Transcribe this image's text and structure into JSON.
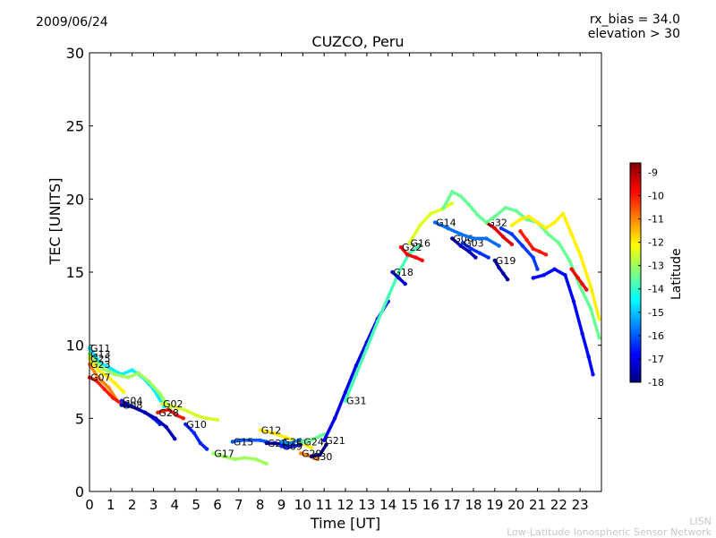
{
  "header": {
    "date": "2009/06/24",
    "title": "CUZCO, Peru",
    "rx_bias": "rx_bias = 34.0",
    "elevation": "elevation > 30"
  },
  "footer": {
    "brand": "LISN",
    "network": "Low-Latitude Ionospheric Sensor Network"
  },
  "chart_data": {
    "type": "scatter",
    "title": "CUZCO, Peru",
    "xlabel": "Time [UT]",
    "ylabel": "TEC [UNITS]",
    "xlim": [
      0,
      24
    ],
    "ylim": [
      0,
      30
    ],
    "xticks": [
      "0",
      "1",
      "2",
      "3",
      "4",
      "5",
      "6",
      "7",
      "8",
      "9",
      "10",
      "11",
      "12",
      "13",
      "14",
      "15",
      "16",
      "17",
      "18",
      "19",
      "20",
      "21",
      "22",
      "23"
    ],
    "yticks": [
      "0",
      "5",
      "10",
      "15",
      "20",
      "25",
      "30"
    ],
    "grid": false,
    "colorbar": {
      "label": "Latitude",
      "min": -18,
      "max": -8.6,
      "ticks": [
        "-9",
        "-10",
        "-11",
        "-12",
        "-13",
        "-14",
        "-15",
        "-16",
        "-17",
        "-18"
      ],
      "colors": [
        "#00007f",
        "#0000ff",
        "#007fff",
        "#00ffff",
        "#7fff7f",
        "#ffff00",
        "#ff7f00",
        "#ff0000",
        "#7f0000"
      ]
    },
    "series": [
      {
        "name": "G11",
        "lat": -14.6,
        "x": [
          0.0,
          0.5,
          1.0,
          1.5,
          2.0,
          2.5,
          3.0,
          3.5
        ],
        "y": [
          9.8,
          8.8,
          8.4,
          8.0,
          8.3,
          7.8,
          7.0,
          5.8
        ]
      },
      {
        "name": "G13",
        "lat": -13.0,
        "x": [
          0.0,
          0.6,
          1.2,
          1.8,
          2.3,
          2.8,
          3.3,
          3.8
        ],
        "y": [
          9.4,
          8.4,
          8.0,
          7.8,
          8.1,
          7.5,
          6.7,
          5.6
        ]
      },
      {
        "name": "G25",
        "lat": -12.0,
        "x": [
          0.0,
          0.4,
          0.8,
          1.2,
          1.6
        ],
        "y": [
          9.1,
          8.3,
          7.9,
          7.4,
          6.8
        ]
      },
      {
        "name": "G23",
        "lat": -11.0,
        "x": [
          0.0,
          0.4,
          0.9,
          1.3
        ],
        "y": [
          8.7,
          7.8,
          7.1,
          6.2
        ]
      },
      {
        "name": "G07",
        "lat": -10.0,
        "x": [
          0.0,
          0.3,
          0.7,
          1.1,
          1.5
        ],
        "y": [
          7.8,
          7.6,
          7.0,
          6.4,
          6.0
        ]
      },
      {
        "name": "G04",
        "lat": -16.5,
        "x": [
          1.5,
          2.0,
          2.6,
          3.0,
          3.3
        ],
        "y": [
          6.2,
          5.8,
          5.4,
          5.0,
          4.6
        ]
      },
      {
        "name": "G08",
        "lat": -17.5,
        "x": [
          1.5,
          2.0,
          2.6,
          3.1,
          3.6,
          4.0
        ],
        "y": [
          5.9,
          5.8,
          5.4,
          5.0,
          4.4,
          3.6
        ]
      },
      {
        "name": "G02",
        "lat": -12.5,
        "x": [
          3.4,
          4.0,
          4.6,
          5.0,
          5.5,
          6.0
        ],
        "y": [
          6.0,
          5.8,
          5.5,
          5.2,
          5.0,
          4.9
        ]
      },
      {
        "name": "G28",
        "lat": -10.0,
        "x": [
          3.2,
          3.7,
          4.1,
          4.4
        ],
        "y": [
          5.4,
          5.6,
          5.2,
          5.0
        ]
      },
      {
        "name": "G10",
        "lat": -16.5,
        "x": [
          4.5,
          4.9,
          5.2,
          5.5
        ],
        "y": [
          4.6,
          4.0,
          3.3,
          2.9
        ]
      },
      {
        "name": "G15",
        "lat": -16.0,
        "x": [
          6.7,
          7.1,
          7.6,
          8.0,
          8.3
        ],
        "y": [
          3.4,
          3.5,
          3.5,
          3.5,
          3.4
        ]
      },
      {
        "name": "G17",
        "lat": -13.0,
        "x": [
          5.8,
          6.3,
          6.8,
          7.3,
          7.8,
          8.3
        ],
        "y": [
          2.6,
          2.4,
          2.2,
          2.3,
          2.2,
          1.9
        ]
      },
      {
        "name": "G12",
        "lat": -12.0,
        "x": [
          8.0,
          8.6,
          9.2,
          9.8,
          10.4
        ],
        "y": [
          4.2,
          4.0,
          3.7,
          3.4,
          3.0
        ]
      },
      {
        "name": "G27",
        "lat": -17.5,
        "x": [
          8.3,
          8.7,
          9.1,
          9.5
        ],
        "y": [
          3.3,
          3.3,
          3.2,
          3.2
        ]
      },
      {
        "name": "G09",
        "lat": -16.5,
        "x": [
          9.0,
          9.3,
          9.6,
          9.9
        ],
        "y": [
          3.1,
          3.0,
          3.1,
          3.2
        ]
      },
      {
        "name": "G26",
        "lat": -15.5,
        "x": [
          9.0,
          9.4,
          9.8,
          10.2
        ],
        "y": [
          3.4,
          3.3,
          3.5,
          3.4
        ]
      },
      {
        "name": "G29",
        "lat": -11.0,
        "x": [
          9.9,
          10.2,
          10.5,
          10.7
        ],
        "y": [
          2.6,
          2.5,
          2.3,
          2.2
        ]
      },
      {
        "name": "G24",
        "lat": -13.5,
        "x": [
          10.0,
          10.4,
          10.8,
          11.0
        ],
        "y": [
          3.4,
          3.5,
          3.8,
          3.9
        ]
      },
      {
        "name": "G30",
        "lat": -18.0,
        "x": [
          10.4,
          10.8,
          11.1
        ],
        "y": [
          2.4,
          2.5,
          3.2
        ]
      },
      {
        "name": "G21",
        "lat": -17.0,
        "x": [
          11.0,
          11.5,
          12.0,
          12.5,
          13.0,
          13.5,
          14.0
        ],
        "y": [
          3.5,
          5.0,
          6.8,
          8.6,
          10.2,
          11.8,
          13.0
        ]
      },
      {
        "name": "G31",
        "lat": -13.8,
        "x": [
          12.0,
          12.5,
          13.0,
          13.5,
          14.0,
          14.5,
          15.0,
          15.5
        ],
        "y": [
          6.2,
          8.0,
          9.8,
          11.6,
          13.3,
          15.0,
          16.3,
          16.8
        ]
      },
      {
        "name": "G18",
        "lat": -17.2,
        "x": [
          14.2,
          14.5,
          14.8
        ],
        "y": [
          15.0,
          14.6,
          14.2
        ]
      },
      {
        "name": "G22",
        "lat": -9.8,
        "x": [
          14.6,
          14.9,
          15.3,
          15.6
        ],
        "y": [
          16.7,
          16.2,
          16.0,
          15.8
        ]
      },
      {
        "name": "G16",
        "lat": -12.4,
        "x": [
          15.0,
          15.5,
          16.0,
          16.5,
          17.0
        ],
        "y": [
          17.0,
          18.2,
          19.0,
          19.3,
          19.7
        ]
      },
      {
        "name": "G06",
        "lat": -17.5,
        "x": [
          17.0,
          17.4,
          17.8,
          18.1
        ],
        "y": [
          17.3,
          16.8,
          16.4,
          16.0
        ]
      },
      {
        "name": "G03",
        "lat": -16.4,
        "x": [
          17.5,
          17.9,
          18.3,
          18.7
        ],
        "y": [
          17.0,
          16.6,
          16.3,
          16.0
        ]
      },
      {
        "name": "G14",
        "lat": -15.8,
        "x": [
          16.2,
          16.8,
          17.4,
          18.0,
          18.6,
          19.2
        ],
        "y": [
          18.4,
          18.0,
          17.6,
          17.3,
          17.3,
          16.8
        ]
      },
      {
        "name": "G32",
        "lat": -9.5,
        "x": [
          18.6,
          19.0,
          19.4,
          19.8
        ],
        "y": [
          18.4,
          18.0,
          17.4,
          16.9
        ]
      },
      {
        "name": "G19",
        "lat": -17.7,
        "x": [
          19.0,
          19.2,
          19.4,
          19.6
        ],
        "y": [
          15.8,
          15.3,
          14.9,
          14.5
        ]
      },
      {
        "name": "",
        "lat": -13.5,
        "x": [
          16.6,
          17.0,
          17.4,
          17.8,
          18.2,
          18.6,
          19.0,
          19.5,
          20.0,
          20.5,
          21.0,
          21.5,
          22.0,
          22.5,
          23.0,
          23.5,
          23.9
        ],
        "y": [
          19.4,
          20.5,
          20.2,
          19.6,
          18.9,
          18.4,
          18.8,
          19.4,
          19.2,
          18.6,
          18.4,
          17.6,
          17.0,
          15.8,
          14.0,
          12.5,
          10.5
        ]
      },
      {
        "name": "",
        "lat": -12.0,
        "x": [
          19.8,
          20.2,
          20.6,
          21.0,
          21.4,
          21.8,
          22.2,
          22.6,
          23.0,
          23.5,
          23.9
        ],
        "y": [
          18.2,
          18.6,
          18.8,
          18.4,
          18.0,
          18.4,
          19.0,
          17.6,
          16.2,
          14.0,
          11.8
        ]
      },
      {
        "name": "",
        "lat": -16.3,
        "x": [
          19.3,
          19.8,
          20.3,
          20.8,
          21.0
        ],
        "y": [
          18.0,
          17.6,
          16.8,
          16.0,
          15.2
        ]
      },
      {
        "name": "",
        "lat": -10.0,
        "x": [
          20.2,
          20.5,
          20.8,
          21.1,
          21.4
        ],
        "y": [
          17.8,
          17.2,
          16.6,
          16.4,
          16.2
        ]
      },
      {
        "name": "",
        "lat": -16.8,
        "x": [
          20.8,
          21.3,
          21.8,
          22.3,
          22.7,
          23.1,
          23.4,
          23.6
        ],
        "y": [
          14.6,
          14.8,
          15.2,
          14.8,
          13.0,
          10.8,
          9.2,
          8.0
        ]
      },
      {
        "name": "",
        "lat": -9.7,
        "x": [
          22.6,
          22.9,
          23.1,
          23.3
        ],
        "y": [
          15.2,
          14.6,
          14.2,
          13.8
        ]
      }
    ]
  }
}
